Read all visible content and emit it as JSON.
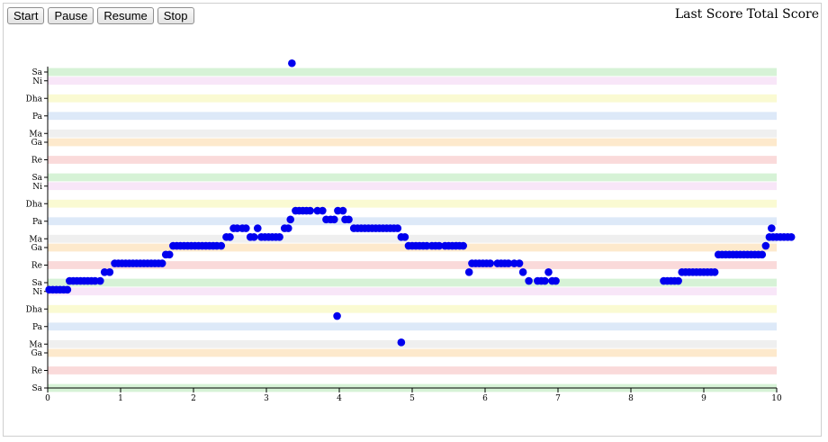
{
  "controls": {
    "start": "Start",
    "pause": "Pause",
    "resume": "Resume",
    "stop": "Stop"
  },
  "scores": {
    "last_score": "Last Score",
    "total_score": "Total Score"
  },
  "colors": {
    "dot": "#0000ee",
    "Sa": "#d6f2d6",
    "Ni": "#f8e6f8",
    "Dha": "#fafad2",
    "Pa": "#dde9f8",
    "Ma": "#efefef",
    "Ga": "#fde9cc",
    "Re": "#fadada"
  },
  "chart_data": {
    "type": "scatter",
    "xlim": [
      0,
      10
    ],
    "x_ticks": [
      0,
      1,
      2,
      3,
      4,
      5,
      6,
      7,
      8,
      9,
      10
    ],
    "y_ticks": [
      {
        "label": "Sa",
        "value": 0
      },
      {
        "label": "Re",
        "value": 2
      },
      {
        "label": "Ga",
        "value": 4
      },
      {
        "label": "Ma",
        "value": 5
      },
      {
        "label": "Pa",
        "value": 7
      },
      {
        "label": "Dha",
        "value": 9
      },
      {
        "label": "Ni",
        "value": 11
      },
      {
        "label": "Sa",
        "value": 12
      },
      {
        "label": "Re",
        "value": 14
      },
      {
        "label": "Ga",
        "value": 16
      },
      {
        "label": "Ma",
        "value": 17
      },
      {
        "label": "Pa",
        "value": 19
      },
      {
        "label": "Dha",
        "value": 21
      },
      {
        "label": "Ni",
        "value": 23
      },
      {
        "label": "Sa",
        "value": 24
      },
      {
        "label": "Re",
        "value": 26
      },
      {
        "label": "Ga",
        "value": 28
      },
      {
        "label": "Ma",
        "value": 29
      },
      {
        "label": "Pa",
        "value": 31
      },
      {
        "label": "Dha",
        "value": 33
      },
      {
        "label": "Ni",
        "value": 35
      },
      {
        "label": "Sa",
        "value": 36
      }
    ],
    "ylim": [
      0,
      36
    ],
    "points": [
      [
        0.02,
        11.2
      ],
      [
        0.07,
        11.2
      ],
      [
        0.12,
        11.2
      ],
      [
        0.17,
        11.2
      ],
      [
        0.22,
        11.2
      ],
      [
        0.27,
        11.2
      ],
      [
        0.3,
        12.2
      ],
      [
        0.35,
        12.2
      ],
      [
        0.4,
        12.2
      ],
      [
        0.45,
        12.2
      ],
      [
        0.5,
        12.2
      ],
      [
        0.55,
        12.2
      ],
      [
        0.6,
        12.2
      ],
      [
        0.65,
        12.2
      ],
      [
        0.72,
        12.2
      ],
      [
        0.78,
        13.2
      ],
      [
        0.85,
        13.2
      ],
      [
        0.92,
        14.2
      ],
      [
        0.97,
        14.2
      ],
      [
        1.02,
        14.2
      ],
      [
        1.07,
        14.2
      ],
      [
        1.12,
        14.2
      ],
      [
        1.17,
        14.2
      ],
      [
        1.22,
        14.2
      ],
      [
        1.27,
        14.2
      ],
      [
        1.32,
        14.2
      ],
      [
        1.37,
        14.2
      ],
      [
        1.42,
        14.2
      ],
      [
        1.47,
        14.2
      ],
      [
        1.52,
        14.2
      ],
      [
        1.57,
        14.2
      ],
      [
        1.62,
        15.2
      ],
      [
        1.67,
        15.2
      ],
      [
        1.72,
        16.2
      ],
      [
        1.77,
        16.2
      ],
      [
        1.82,
        16.2
      ],
      [
        1.87,
        16.2
      ],
      [
        1.92,
        16.2
      ],
      [
        1.97,
        16.2
      ],
      [
        2.02,
        16.2
      ],
      [
        2.07,
        16.2
      ],
      [
        2.12,
        16.2
      ],
      [
        2.17,
        16.2
      ],
      [
        2.22,
        16.2
      ],
      [
        2.27,
        16.2
      ],
      [
        2.32,
        16.2
      ],
      [
        2.38,
        16.2
      ],
      [
        2.45,
        17.2
      ],
      [
        2.5,
        17.2
      ],
      [
        2.55,
        18.2
      ],
      [
        2.6,
        18.2
      ],
      [
        2.67,
        18.2
      ],
      [
        2.72,
        18.2
      ],
      [
        2.78,
        17.2
      ],
      [
        2.83,
        17.2
      ],
      [
        2.88,
        18.2
      ],
      [
        2.93,
        17.2
      ],
      [
        2.98,
        17.2
      ],
      [
        3.03,
        17.2
      ],
      [
        3.08,
        17.2
      ],
      [
        3.13,
        17.2
      ],
      [
        3.18,
        17.2
      ],
      [
        3.25,
        18.2
      ],
      [
        3.3,
        18.2
      ],
      [
        3.33,
        19.2
      ],
      [
        3.4,
        20.2
      ],
      [
        3.45,
        20.2
      ],
      [
        3.5,
        20.2
      ],
      [
        3.55,
        20.2
      ],
      [
        3.6,
        20.2
      ],
      [
        3.7,
        20.2
      ],
      [
        3.77,
        20.2
      ],
      [
        3.82,
        19.2
      ],
      [
        3.88,
        19.2
      ],
      [
        3.93,
        19.2
      ],
      [
        3.98,
        20.2
      ],
      [
        4.05,
        20.2
      ],
      [
        4.08,
        19.2
      ],
      [
        4.13,
        19.2
      ],
      [
        4.2,
        18.2
      ],
      [
        4.25,
        18.2
      ],
      [
        4.3,
        18.2
      ],
      [
        4.35,
        18.2
      ],
      [
        4.4,
        18.2
      ],
      [
        4.45,
        18.2
      ],
      [
        4.5,
        18.2
      ],
      [
        4.55,
        18.2
      ],
      [
        4.6,
        18.2
      ],
      [
        4.65,
        18.2
      ],
      [
        4.7,
        18.2
      ],
      [
        4.75,
        18.2
      ],
      [
        4.8,
        18.2
      ],
      [
        4.85,
        17.2
      ],
      [
        4.9,
        17.2
      ],
      [
        4.95,
        16.2
      ],
      [
        5.0,
        16.2
      ],
      [
        5.05,
        16.2
      ],
      [
        5.1,
        16.2
      ],
      [
        5.15,
        16.2
      ],
      [
        5.2,
        16.2
      ],
      [
        5.27,
        16.2
      ],
      [
        5.32,
        16.2
      ],
      [
        5.37,
        16.2
      ],
      [
        5.45,
        16.2
      ],
      [
        5.5,
        16.2
      ],
      [
        5.55,
        16.2
      ],
      [
        5.6,
        16.2
      ],
      [
        5.65,
        16.2
      ],
      [
        5.7,
        16.2
      ],
      [
        5.78,
        13.2
      ],
      [
        5.82,
        14.2
      ],
      [
        5.87,
        14.2
      ],
      [
        5.92,
        14.2
      ],
      [
        5.97,
        14.2
      ],
      [
        6.02,
        14.2
      ],
      [
        6.07,
        14.2
      ],
      [
        6.17,
        14.2
      ],
      [
        6.22,
        14.2
      ],
      [
        6.27,
        14.2
      ],
      [
        6.32,
        14.2
      ],
      [
        6.4,
        14.2
      ],
      [
        6.47,
        14.2
      ],
      [
        6.52,
        13.2
      ],
      [
        6.6,
        12.2
      ],
      [
        6.72,
        12.2
      ],
      [
        6.77,
        12.2
      ],
      [
        6.82,
        12.2
      ],
      [
        6.87,
        13.2
      ],
      [
        6.92,
        12.2
      ],
      [
        6.97,
        12.2
      ],
      [
        8.45,
        12.2
      ],
      [
        8.5,
        12.2
      ],
      [
        8.55,
        12.2
      ],
      [
        8.6,
        12.2
      ],
      [
        8.65,
        12.2
      ],
      [
        8.7,
        13.2
      ],
      [
        8.75,
        13.2
      ],
      [
        8.8,
        13.2
      ],
      [
        8.85,
        13.2
      ],
      [
        8.9,
        13.2
      ],
      [
        8.95,
        13.2
      ],
      [
        9.0,
        13.2
      ],
      [
        9.05,
        13.2
      ],
      [
        9.1,
        13.2
      ],
      [
        9.15,
        13.2
      ],
      [
        9.2,
        15.2
      ],
      [
        9.25,
        15.2
      ],
      [
        9.3,
        15.2
      ],
      [
        9.35,
        15.2
      ],
      [
        9.4,
        15.2
      ],
      [
        9.45,
        15.2
      ],
      [
        9.5,
        15.2
      ],
      [
        9.55,
        15.2
      ],
      [
        9.6,
        15.2
      ],
      [
        9.65,
        15.2
      ],
      [
        9.7,
        15.2
      ],
      [
        9.75,
        15.2
      ],
      [
        9.8,
        15.2
      ],
      [
        9.85,
        16.2
      ],
      [
        9.9,
        17.2
      ],
      [
        9.93,
        18.2
      ],
      [
        9.95,
        17.2
      ],
      [
        10.0,
        17.2
      ],
      [
        10.05,
        17.2
      ],
      [
        10.1,
        17.2
      ],
      [
        10.15,
        17.2
      ],
      [
        10.2,
        17.2
      ],
      [
        3.35,
        37.0
      ],
      [
        3.97,
        8.2
      ],
      [
        4.85,
        5.2
      ]
    ]
  }
}
